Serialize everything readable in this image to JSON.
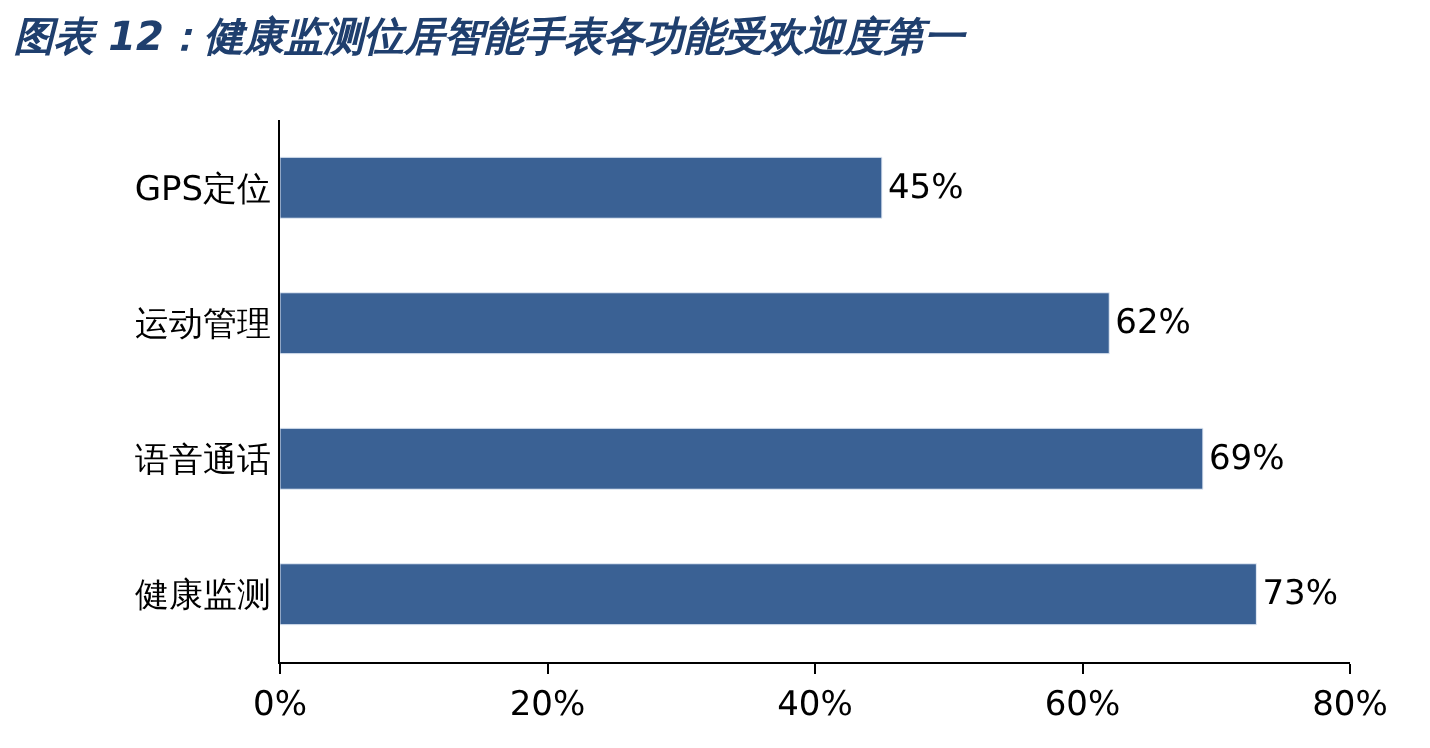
{
  "chart_data": {
    "type": "bar",
    "orientation": "horizontal",
    "title": "图表 12：健康监测位居智能手表各功能受欢迎度第一",
    "categories": [
      "GPS定位",
      "运动管理",
      "语音通话",
      "健康监测"
    ],
    "values": [
      45,
      62,
      69,
      73
    ],
    "color": "#3a6194",
    "value_labels": [
      "45%",
      "62%",
      "69%",
      "73%"
    ],
    "xlim": [
      0,
      80
    ],
    "xticks": [
      {
        "value": 0,
        "label": "0%"
      },
      {
        "value": 20,
        "label": "20%"
      },
      {
        "value": 40,
        "label": "40%"
      },
      {
        "value": 60,
        "label": "60%"
      },
      {
        "value": 80,
        "label": "80%"
      }
    ],
    "legend": false
  }
}
